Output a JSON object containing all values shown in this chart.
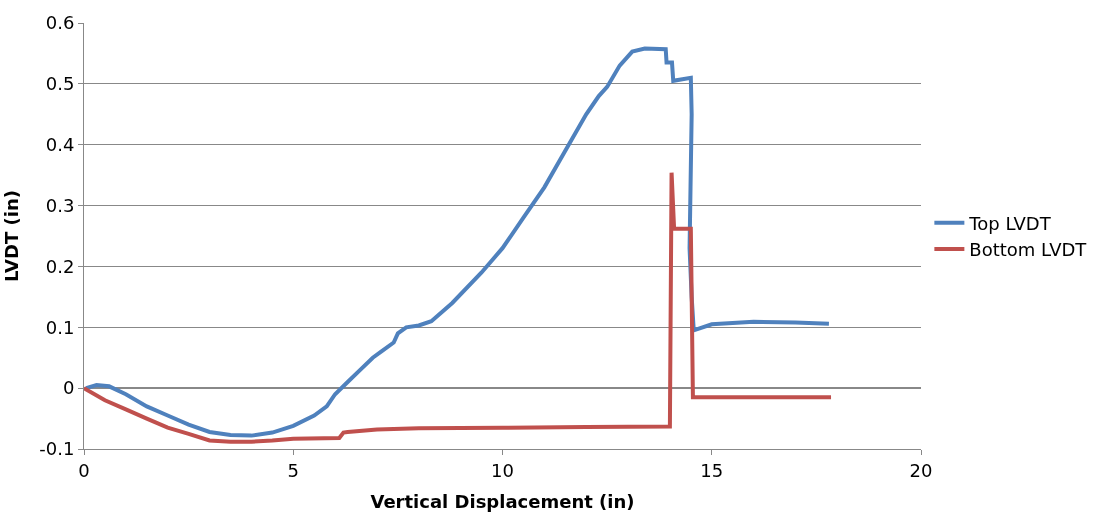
{
  "chart_data": {
    "type": "line",
    "xlabel": "Vertical Displacement (in)",
    "ylabel": "LVDT (in)",
    "xlim": [
      0,
      20
    ],
    "xticks": [
      0,
      5,
      10,
      15,
      20
    ],
    "ylim": [
      -0.1,
      0.6
    ],
    "yticks": [
      -0.1,
      0,
      0.1,
      0.2,
      0.3,
      0.4,
      0.5,
      0.6
    ],
    "grid": "y",
    "legend": "right",
    "marker": "none",
    "line_style": "solid",
    "series": [
      {
        "name": "Top LVDT",
        "color": "#4f81bd",
        "x": [
          0.05,
          0.3,
          0.6,
          1,
          1.5,
          2,
          2.5,
          3,
          3.5,
          4,
          4.5,
          5,
          5.5,
          5.8,
          6,
          6.3,
          6.6,
          6.9,
          7.1,
          7.4,
          7.5,
          7.7,
          8,
          8.3,
          8.8,
          9.5,
          10,
          10.5,
          11,
          11.5,
          12,
          12.3,
          12.5,
          12.8,
          13.1,
          13.4,
          13.9,
          13.92,
          14.05,
          14.08,
          14.5,
          14.52,
          14.47,
          14.52,
          14.57,
          15,
          15.5,
          16,
          17,
          17.8
        ],
        "values": [
          0,
          0.005,
          0.003,
          -0.01,
          -0.03,
          -0.045,
          -0.06,
          -0.072,
          -0.077,
          -0.078,
          -0.073,
          -0.062,
          -0.045,
          -0.03,
          -0.01,
          0.01,
          0.03,
          0.05,
          0.06,
          0.075,
          0.09,
          0.1,
          0.103,
          0.11,
          0.14,
          0.19,
          0.23,
          0.28,
          0.33,
          0.39,
          0.45,
          0.48,
          0.495,
          0.53,
          0.553,
          0.558,
          0.557,
          0.535,
          0.535,
          0.505,
          0.51,
          0.45,
          0.23,
          0.15,
          0.095,
          0.105,
          0.107,
          0.109,
          0.108,
          0.106
        ]
      },
      {
        "name": "Bottom LVDT",
        "color": "#c0504d",
        "x": [
          0,
          0.5,
          1,
          1.5,
          2,
          2.5,
          3,
          3.5,
          4,
          4.5,
          5,
          6.1,
          6.2,
          6.3,
          7,
          8,
          10,
          12,
          14.0,
          14.04,
          14.1,
          14.5,
          14.55,
          17.85
        ],
        "values": [
          0,
          -0.02,
          -0.035,
          -0.05,
          -0.065,
          -0.075,
          -0.086,
          -0.088,
          -0.088,
          -0.086,
          -0.083,
          -0.082,
          -0.073,
          -0.072,
          -0.068,
          -0.066,
          -0.065,
          -0.064,
          -0.063,
          0.354,
          0.262,
          0.262,
          -0.015,
          -0.015
        ]
      }
    ]
  }
}
